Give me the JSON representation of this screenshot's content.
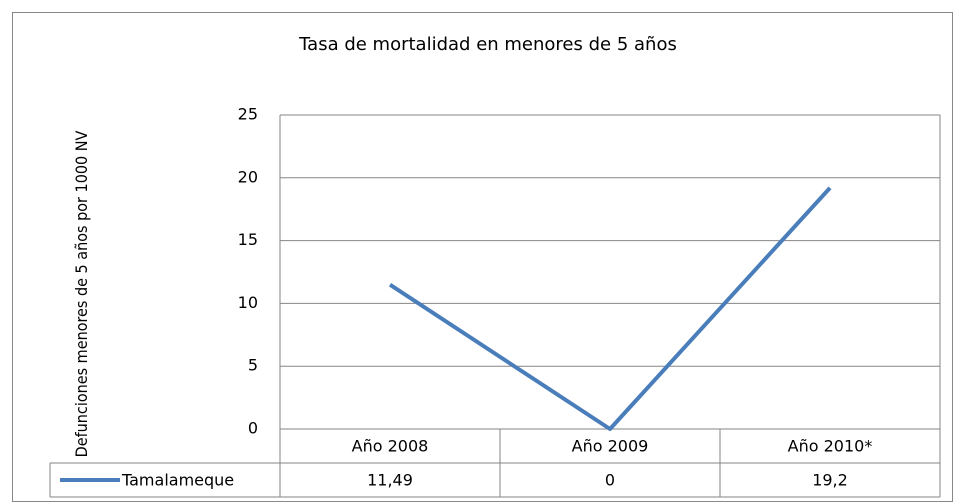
{
  "chart_data": {
    "type": "line",
    "title": "Tasa de mortalidad en menores de 5 años",
    "y_label": "Defunciones menores de 5 años por 1000 NV",
    "categories": [
      "Año 2008",
      "Año 2009",
      "Año 2010*"
    ],
    "series": [
      {
        "name": "Tamalameque",
        "color": "#4a7ebb",
        "values": [
          11.49,
          0,
          19.2
        ],
        "value_labels": [
          "11,49",
          "0",
          "19,2"
        ]
      }
    ],
    "ylim": [
      0,
      25
    ],
    "yticks": [
      0,
      5,
      10,
      15,
      20,
      25
    ],
    "grid": true
  }
}
